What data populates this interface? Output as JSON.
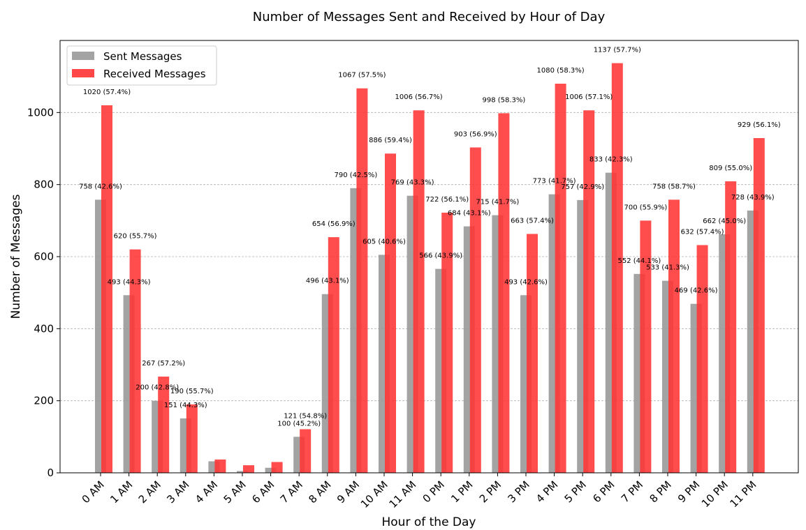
{
  "chart_data": {
    "type": "bar",
    "title": "Number of Messages Sent and Received by Hour of Day",
    "xlabel": "Hour of the Day",
    "ylabel": "Number of Messages",
    "ylim": [
      0,
      1200
    ],
    "yticks": [
      0,
      200,
      400,
      600,
      800,
      1000
    ],
    "grid": "y-dashed",
    "legend_position": "top-left",
    "categories": [
      "0 AM",
      "1 AM",
      "2 AM",
      "3 AM",
      "4 AM",
      "5 AM",
      "6 AM",
      "7 AM",
      "8 AM",
      "9 AM",
      "10 AM",
      "11 AM",
      "0 PM",
      "1 PM",
      "2 PM",
      "3 PM",
      "4 PM",
      "5 PM",
      "6 PM",
      "7 PM",
      "8 PM",
      "9 PM",
      "10 PM",
      "11 PM"
    ],
    "series": [
      {
        "name": "Sent Messages",
        "color": "#999999",
        "values": [
          758,
          493,
          200,
          151,
          32,
          5,
          14,
          100,
          496,
          790,
          605,
          769,
          566,
          684,
          715,
          493,
          773,
          757,
          833,
          552,
          533,
          469,
          662,
          728
        ],
        "labels": [
          "758 (42.6%)",
          "493 (44.3%)",
          "200 (42.8%)",
          "151 (44.3%)",
          "",
          "",
          "",
          "100 (45.2%)",
          "496 (43.1%)",
          "790 (42.5%)",
          "605 (40.6%)",
          "769 (43.3%)",
          "566 (43.9%)",
          "684 (43.1%)",
          "715 (41.7%)",
          "493 (42.6%)",
          "773 (41.7%)",
          "757 (42.9%)",
          "833 (42.3%)",
          "552 (44.1%)",
          "533 (41.3%)",
          "469 (42.6%)",
          "662 (45.0%)",
          "728 (43.9%)"
        ]
      },
      {
        "name": "Received Messages",
        "color": "#ff3333",
        "values": [
          1020,
          620,
          267,
          190,
          37,
          21,
          30,
          121,
          654,
          1067,
          886,
          1006,
          722,
          903,
          998,
          663,
          1080,
          1006,
          1137,
          700,
          758,
          632,
          809,
          929
        ],
        "labels": [
          "1020 (57.4%)",
          "620 (55.7%)",
          "267 (57.2%)",
          "190 (55.7%)",
          "",
          "",
          "",
          "121 (54.8%)",
          "654 (56.9%)",
          "1067 (57.5%)",
          "886 (59.4%)",
          "1006 (56.7%)",
          "722 (56.1%)",
          "903 (56.9%)",
          "998 (58.3%)",
          "663 (57.4%)",
          "1080 (58.3%)",
          "1006 (57.1%)",
          "1137 (57.7%)",
          "700 (55.9%)",
          "758 (58.7%)",
          "632 (57.4%)",
          "809 (55.0%)",
          "929 (56.1%)"
        ]
      }
    ]
  }
}
